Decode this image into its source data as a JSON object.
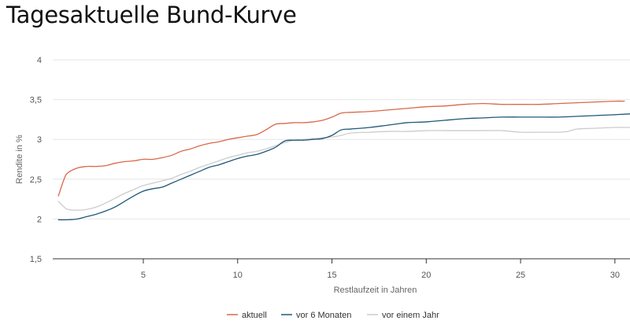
{
  "page": {
    "title": "Tagesaktuelle Bund-Kurve"
  },
  "chart_data": {
    "type": "line",
    "title": "Tagesaktuelle Bund-Kurve",
    "xlabel": "Restlaufzeit in Jahren",
    "ylabel": "Rendite in %",
    "xlim": [
      0.2,
      30.8
    ],
    "ylim": [
      1.5,
      4
    ],
    "x_ticks": [
      5,
      10,
      15,
      20,
      25,
      30
    ],
    "x_tick_labels": [
      "5",
      "10",
      "15",
      "20",
      "25",
      "30"
    ],
    "y_ticks": [
      1.5,
      2,
      2.5,
      3,
      3.5,
      4
    ],
    "y_tick_labels": [
      "1,5",
      "2",
      "2,5",
      "3",
      "3,5",
      "4"
    ],
    "grid": "horizontal",
    "legend_position": "bottom-center",
    "series": [
      {
        "name": "aktuell",
        "color": "#d9694a",
        "points": [
          [
            0.5,
            2.29
          ],
          [
            0.8,
            2.5
          ],
          [
            1,
            2.58
          ],
          [
            1.5,
            2.64
          ],
          [
            2,
            2.66
          ],
          [
            2.5,
            2.66
          ],
          [
            3,
            2.67
          ],
          [
            3.5,
            2.7
          ],
          [
            4,
            2.72
          ],
          [
            4.5,
            2.73
          ],
          [
            5,
            2.75
          ],
          [
            5.5,
            2.75
          ],
          [
            6,
            2.77
          ],
          [
            6.5,
            2.8
          ],
          [
            7,
            2.85
          ],
          [
            7.5,
            2.88
          ],
          [
            8,
            2.92
          ],
          [
            8.5,
            2.95
          ],
          [
            9,
            2.97
          ],
          [
            9.5,
            3.0
          ],
          [
            10,
            3.02
          ],
          [
            10.5,
            3.04
          ],
          [
            11,
            3.06
          ],
          [
            11.5,
            3.12
          ],
          [
            12,
            3.19
          ],
          [
            12.5,
            3.2
          ],
          [
            13,
            3.21
          ],
          [
            13.5,
            3.21
          ],
          [
            14,
            3.22
          ],
          [
            14.5,
            3.24
          ],
          [
            15,
            3.28
          ],
          [
            15.5,
            3.33
          ],
          [
            16,
            3.34
          ],
          [
            17,
            3.35
          ],
          [
            18,
            3.37
          ],
          [
            19,
            3.39
          ],
          [
            20,
            3.41
          ],
          [
            21,
            3.42
          ],
          [
            22,
            3.44
          ],
          [
            23,
            3.45
          ],
          [
            24,
            3.44
          ],
          [
            25,
            3.44
          ],
          [
            26,
            3.44
          ],
          [
            27,
            3.45
          ],
          [
            28,
            3.46
          ],
          [
            29,
            3.47
          ],
          [
            30,
            3.48
          ],
          [
            30.5,
            3.48
          ]
        ]
      },
      {
        "name": "vor 6 Monaten",
        "color": "#1f5878",
        "points": [
          [
            0.5,
            1.99
          ],
          [
            1,
            1.99
          ],
          [
            1.5,
            2.0
          ],
          [
            2,
            2.03
          ],
          [
            2.5,
            2.06
          ],
          [
            3,
            2.1
          ],
          [
            3.5,
            2.15
          ],
          [
            4,
            2.22
          ],
          [
            4.5,
            2.29
          ],
          [
            5,
            2.35
          ],
          [
            5.5,
            2.38
          ],
          [
            6,
            2.4
          ],
          [
            6.5,
            2.45
          ],
          [
            7,
            2.5
          ],
          [
            7.5,
            2.55
          ],
          [
            8,
            2.6
          ],
          [
            8.5,
            2.65
          ],
          [
            9,
            2.68
          ],
          [
            9.5,
            2.72
          ],
          [
            10,
            2.76
          ],
          [
            10.5,
            2.79
          ],
          [
            11,
            2.81
          ],
          [
            11.5,
            2.85
          ],
          [
            12,
            2.9
          ],
          [
            12.5,
            2.98
          ],
          [
            13,
            2.99
          ],
          [
            13.5,
            2.99
          ],
          [
            14,
            3.0
          ],
          [
            14.5,
            3.01
          ],
          [
            15,
            3.05
          ],
          [
            15.5,
            3.12
          ],
          [
            16,
            3.13
          ],
          [
            17,
            3.15
          ],
          [
            18,
            3.18
          ],
          [
            19,
            3.21
          ],
          [
            20,
            3.22
          ],
          [
            21,
            3.24
          ],
          [
            22,
            3.26
          ],
          [
            23,
            3.27
          ],
          [
            24,
            3.28
          ],
          [
            25,
            3.28
          ],
          [
            26,
            3.28
          ],
          [
            27,
            3.28
          ],
          [
            28,
            3.29
          ],
          [
            29,
            3.3
          ],
          [
            30,
            3.31
          ],
          [
            30.8,
            3.32
          ]
        ]
      },
      {
        "name": "vor einem Jahr",
        "color": "#cccccc",
        "points": [
          [
            0.5,
            2.22
          ],
          [
            0.8,
            2.15
          ],
          [
            1,
            2.12
          ],
          [
            1.5,
            2.11
          ],
          [
            2,
            2.12
          ],
          [
            2.5,
            2.15
          ],
          [
            3,
            2.2
          ],
          [
            3.5,
            2.26
          ],
          [
            4,
            2.32
          ],
          [
            4.5,
            2.37
          ],
          [
            5,
            2.42
          ],
          [
            5.5,
            2.45
          ],
          [
            6,
            2.48
          ],
          [
            6.5,
            2.51
          ],
          [
            7,
            2.56
          ],
          [
            7.5,
            2.6
          ],
          [
            8,
            2.65
          ],
          [
            8.5,
            2.69
          ],
          [
            9,
            2.73
          ],
          [
            9.5,
            2.77
          ],
          [
            10,
            2.8
          ],
          [
            10.5,
            2.83
          ],
          [
            11,
            2.85
          ],
          [
            11.5,
            2.88
          ],
          [
            12,
            2.92
          ],
          [
            12.5,
            2.96
          ],
          [
            13,
            2.99
          ],
          [
            13.5,
            3.0
          ],
          [
            14,
            3.01
          ],
          [
            14.5,
            3.02
          ],
          [
            15,
            3.03
          ],
          [
            15.5,
            3.05
          ],
          [
            16,
            3.08
          ],
          [
            17,
            3.09
          ],
          [
            18,
            3.1
          ],
          [
            19,
            3.1
          ],
          [
            20,
            3.11
          ],
          [
            21,
            3.11
          ],
          [
            22,
            3.11
          ],
          [
            23,
            3.11
          ],
          [
            24,
            3.11
          ],
          [
            25,
            3.09
          ],
          [
            26,
            3.09
          ],
          [
            27,
            3.09
          ],
          [
            27.5,
            3.1
          ],
          [
            28,
            3.13
          ],
          [
            29,
            3.14
          ],
          [
            30,
            3.15
          ],
          [
            30.8,
            3.15
          ]
        ]
      }
    ]
  }
}
